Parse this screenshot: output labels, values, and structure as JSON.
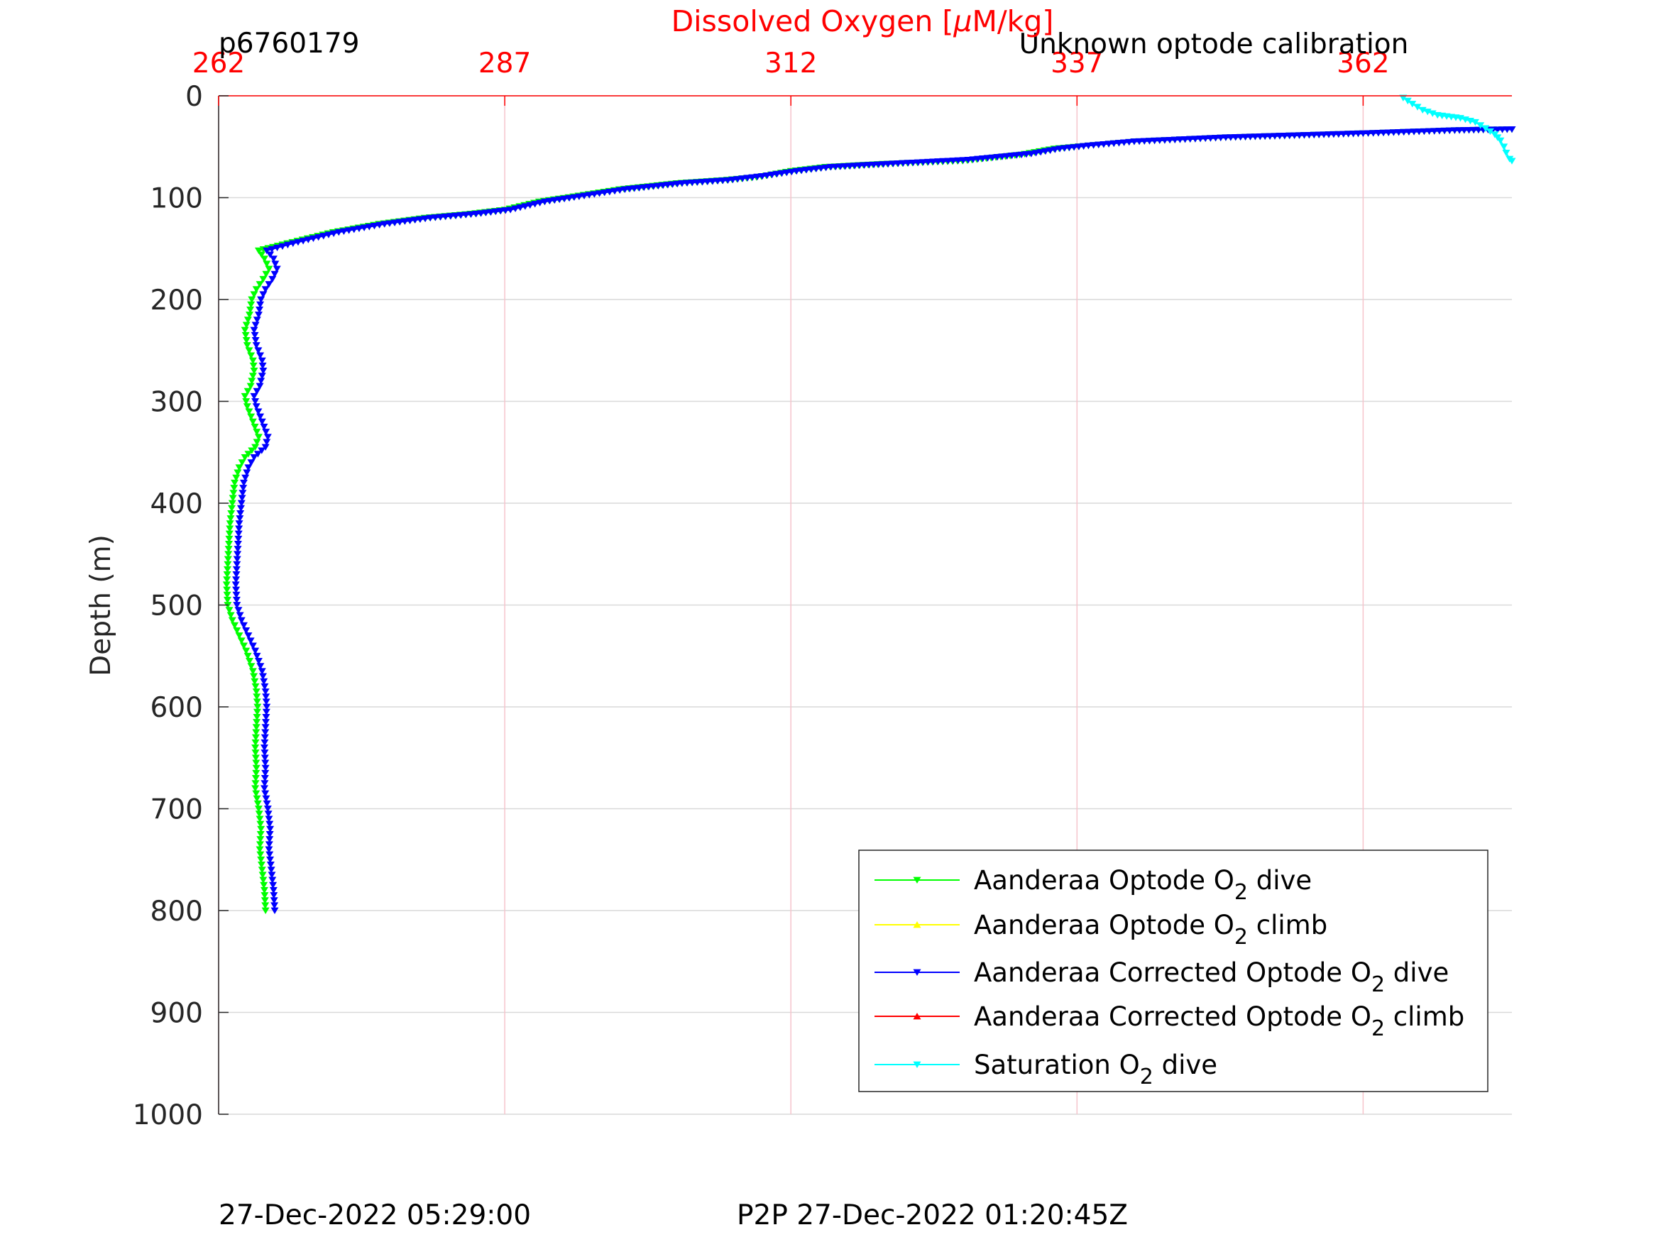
{
  "header": {
    "profile_id": "p6760179",
    "calibration_note": "Unknown optode calibration"
  },
  "footer": {
    "dive_time": "27-Dec-2022 05:29:00",
    "p2p_time": "P2P 27-Dec-2022 01:20:45Z"
  },
  "colors": {
    "green": "#00ff00",
    "yellow": "#ffff00",
    "blue": "#0000ff",
    "red": "#ff0000",
    "cyan": "#00ffff"
  },
  "chart_data": {
    "type": "line",
    "title": "",
    "xlabel": "Dissolved Oxygen [μM/kg]",
    "xlabel_parts": {
      "before": "Dissolved Oxygen [",
      "greek": "μ",
      "after": "M/kg]"
    },
    "ylabel": "Depth (m)",
    "x_axis_location": "top",
    "y_reversed": true,
    "xlim": [
      262,
      375
    ],
    "ylim": [
      0,
      1000
    ],
    "x_ticks": [
      262,
      287,
      312,
      337,
      362
    ],
    "y_ticks": [
      0,
      100,
      200,
      300,
      400,
      500,
      600,
      700,
      800,
      900,
      1000
    ],
    "grid": true,
    "legend_position": "bottom-right",
    "legend": [
      {
        "before": "Aanderaa Optode O",
        "sub": "2",
        "after": " dive",
        "color": "#00ff00",
        "marker": "down"
      },
      {
        "before": "Aanderaa Optode O",
        "sub": "2",
        "after": " climb",
        "color": "#ffff00",
        "marker": "up"
      },
      {
        "before": "Aanderaa Corrected Optode O",
        "sub": "2",
        "after": " dive",
        "color": "#0000ff",
        "marker": "down"
      },
      {
        "before": "Aanderaa Corrected Optode O",
        "sub": "2",
        "after": " climb",
        "color": "#ff0000",
        "marker": "up"
      },
      {
        "before": "Saturation O",
        "sub": "2",
        "after": " dive",
        "color": "#00ffff",
        "marker": "down"
      }
    ],
    "series": [
      {
        "name": "Aanderaa Optode O2 dive",
        "color": "#00ff00",
        "marker": "down",
        "points": [
          [
            375,
            33
          ],
          [
            370,
            34
          ],
          [
            362,
            37
          ],
          [
            350,
            41
          ],
          [
            342,
            45
          ],
          [
            338,
            49
          ],
          [
            335,
            52
          ],
          [
            332,
            58
          ],
          [
            327,
            64
          ],
          [
            320,
            67
          ],
          [
            315,
            70
          ],
          [
            312,
            74
          ],
          [
            309,
            80
          ],
          [
            306,
            83
          ],
          [
            302,
            86
          ],
          [
            297,
            92
          ],
          [
            293,
            99
          ],
          [
            290,
            104
          ],
          [
            287,
            112
          ],
          [
            284,
            116
          ],
          [
            280,
            120
          ],
          [
            276,
            126
          ],
          [
            272,
            134
          ],
          [
            268,
            145
          ],
          [
            265.5,
            152
          ],
          [
            266,
            160
          ],
          [
            266.4,
            170
          ],
          [
            265.9,
            180
          ],
          [
            265.3,
            190
          ],
          [
            264.9,
            200
          ],
          [
            264.7,
            215
          ],
          [
            264.3,
            230
          ],
          [
            264.5,
            245
          ],
          [
            265.0,
            260
          ],
          [
            265.1,
            270
          ],
          [
            264.8,
            285
          ],
          [
            264.3,
            295
          ],
          [
            264.5,
            305
          ],
          [
            265.0,
            320
          ],
          [
            265.5,
            335
          ],
          [
            265.2,
            345
          ],
          [
            264.3,
            355
          ],
          [
            263.8,
            365
          ],
          [
            263.4,
            380
          ],
          [
            263.2,
            400
          ],
          [
            263.0,
            420
          ],
          [
            262.9,
            440
          ],
          [
            262.8,
            460
          ],
          [
            262.7,
            480
          ],
          [
            262.8,
            500
          ],
          [
            263.2,
            515
          ],
          [
            263.8,
            530
          ],
          [
            264.4,
            545
          ],
          [
            265.0,
            565
          ],
          [
            265.3,
            585
          ],
          [
            265.4,
            600
          ],
          [
            265.3,
            620
          ],
          [
            265.2,
            640
          ],
          [
            265.3,
            660
          ],
          [
            265.2,
            680
          ],
          [
            265.5,
            700
          ],
          [
            265.7,
            720
          ],
          [
            265.6,
            740
          ],
          [
            265.8,
            760
          ],
          [
            266.0,
            780
          ],
          [
            266.1,
            800
          ]
        ]
      },
      {
        "name": "Aanderaa Corrected Optode O2 dive",
        "color": "#0000ff",
        "marker": "down",
        "points": [
          [
            375,
            33
          ],
          [
            370,
            34
          ],
          [
            362,
            37
          ],
          [
            350,
            41
          ],
          [
            342,
            45
          ],
          [
            338,
            49
          ],
          [
            335.5,
            52
          ],
          [
            333,
            57
          ],
          [
            327.5,
            63
          ],
          [
            320.5,
            67
          ],
          [
            315.5,
            70
          ],
          [
            312.5,
            74
          ],
          [
            309.5,
            79
          ],
          [
            306.5,
            83
          ],
          [
            302.5,
            86
          ],
          [
            297.5,
            92
          ],
          [
            293.5,
            99
          ],
          [
            290.5,
            104
          ],
          [
            287.5,
            112
          ],
          [
            284.5,
            116
          ],
          [
            280.5,
            120
          ],
          [
            276.5,
            126
          ],
          [
            272.5,
            134
          ],
          [
            268.5,
            145
          ],
          [
            266.2,
            152
          ],
          [
            266.8,
            160
          ],
          [
            267.1,
            170
          ],
          [
            266.7,
            180
          ],
          [
            266.1,
            190
          ],
          [
            265.7,
            200
          ],
          [
            265.5,
            215
          ],
          [
            265.1,
            230
          ],
          [
            265.3,
            245
          ],
          [
            265.8,
            260
          ],
          [
            265.9,
            270
          ],
          [
            265.6,
            285
          ],
          [
            265.1,
            295
          ],
          [
            265.3,
            305
          ],
          [
            265.8,
            320
          ],
          [
            266.3,
            335
          ],
          [
            266.1,
            345
          ],
          [
            265.1,
            355
          ],
          [
            264.6,
            365
          ],
          [
            264.2,
            380
          ],
          [
            264.0,
            400
          ],
          [
            263.8,
            420
          ],
          [
            263.7,
            440
          ],
          [
            263.6,
            460
          ],
          [
            263.5,
            480
          ],
          [
            263.6,
            500
          ],
          [
            264.0,
            515
          ],
          [
            264.6,
            530
          ],
          [
            265.2,
            545
          ],
          [
            265.8,
            565
          ],
          [
            266.1,
            585
          ],
          [
            266.2,
            600
          ],
          [
            266.1,
            620
          ],
          [
            266.0,
            640
          ],
          [
            266.1,
            660
          ],
          [
            266.0,
            680
          ],
          [
            266.3,
            700
          ],
          [
            266.5,
            720
          ],
          [
            266.4,
            740
          ],
          [
            266.6,
            760
          ],
          [
            266.8,
            780
          ],
          [
            266.9,
            800
          ]
        ]
      },
      {
        "name": "Saturation O2 dive",
        "color": "#00ffff",
        "marker": "down",
        "points": [
          [
            365.5,
            2
          ],
          [
            366.3,
            8
          ],
          [
            367.2,
            14
          ],
          [
            368.5,
            19
          ],
          [
            370.5,
            22
          ],
          [
            371.8,
            26
          ],
          [
            372.7,
            32
          ],
          [
            373.5,
            38
          ],
          [
            374.0,
            44
          ],
          [
            374.3,
            50
          ],
          [
            374.5,
            56
          ],
          [
            374.8,
            62
          ],
          [
            375.0,
            64
          ]
        ]
      }
    ]
  }
}
